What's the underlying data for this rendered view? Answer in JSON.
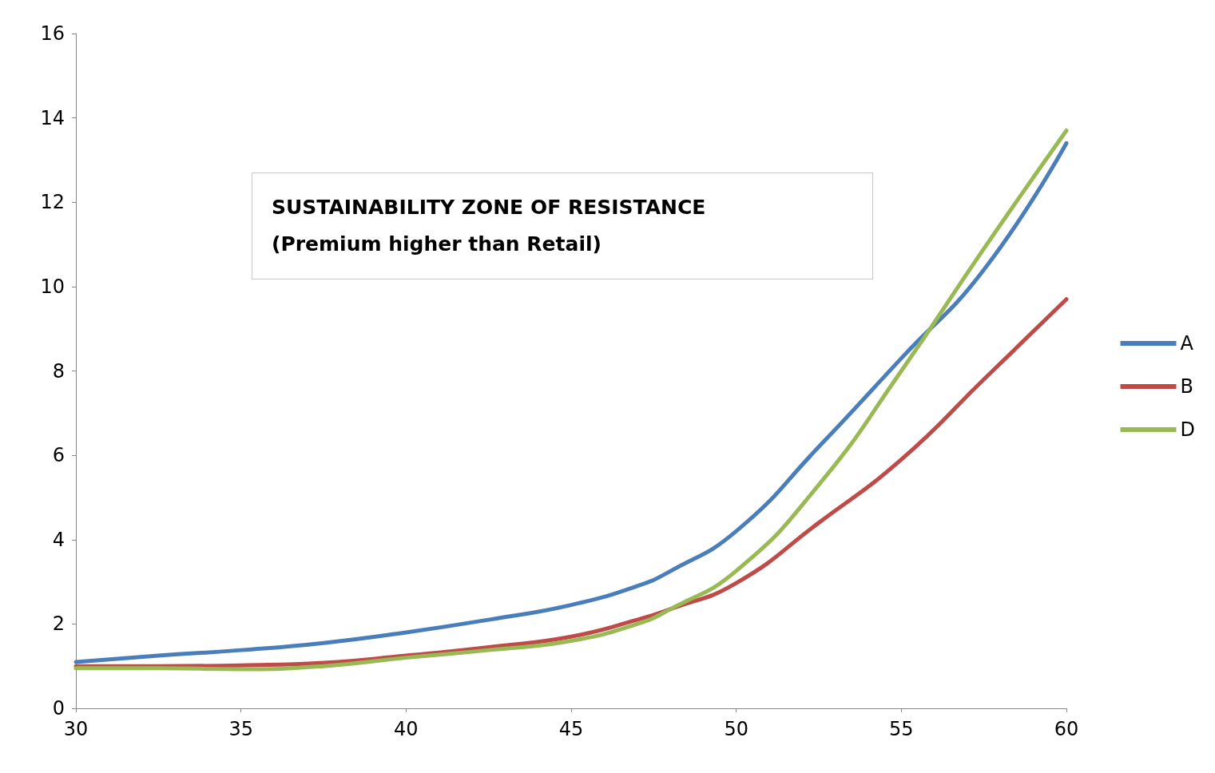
{
  "chart_data": {
    "type": "line",
    "x": [
      30,
      32.5,
      35,
      37.5,
      40,
      42.5,
      45,
      47,
      48,
      50,
      52.5,
      55,
      57.5,
      60
    ],
    "series": [
      {
        "name": "A",
        "color": "#4a7ebb",
        "values": [
          1.1,
          1.25,
          1.38,
          1.55,
          1.8,
          2.1,
          2.45,
          2.9,
          3.25,
          4.2,
          6.2,
          8.3,
          10.4,
          13.4
        ]
      },
      {
        "name": "B",
        "color": "#be4b48",
        "values": [
          1.0,
          1.0,
          1.02,
          1.08,
          1.25,
          1.45,
          1.7,
          2.1,
          2.35,
          2.97,
          4.4,
          5.9,
          7.8,
          9.7
        ]
      },
      {
        "name": "D",
        "color": "#98b954",
        "values": [
          0.95,
          0.95,
          0.93,
          1.0,
          1.2,
          1.38,
          1.6,
          2.0,
          2.35,
          3.26,
          5.3,
          8.0,
          10.9,
          13.7
        ]
      }
    ],
    "xlim": [
      30,
      60
    ],
    "xticks": [
      30,
      35,
      40,
      45,
      50,
      55,
      60
    ],
    "ylim": [
      0,
      16
    ],
    "yticks": [
      0,
      2,
      4,
      6,
      8,
      10,
      12,
      14,
      16
    ],
    "annotations": [
      "SUSTAINABILITY ZONE OF RESISTANCE",
      "(Premium higher than Retail)"
    ],
    "legend": "right",
    "marker": "none",
    "line_style": "solid",
    "grid": false
  }
}
